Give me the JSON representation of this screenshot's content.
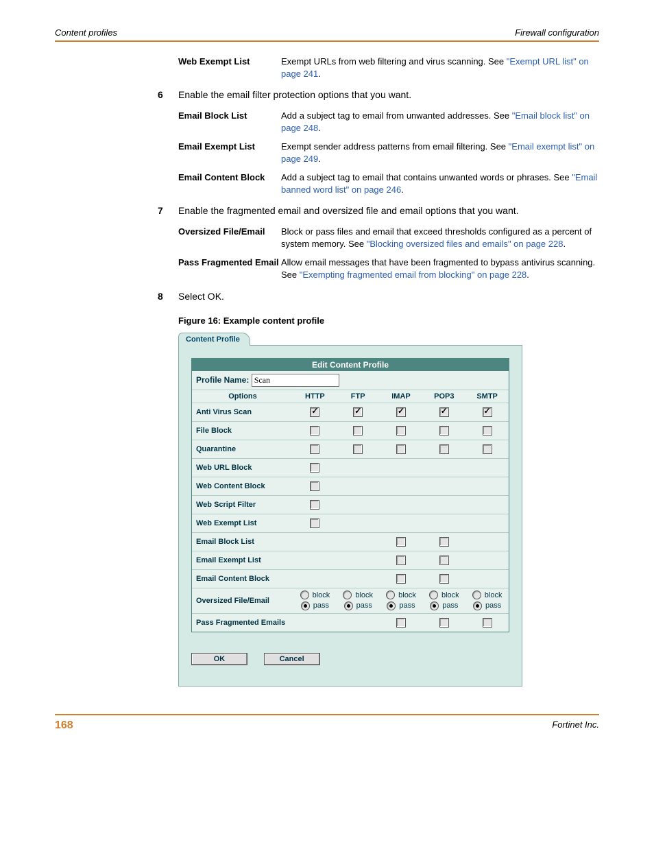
{
  "header": {
    "left": "Content profiles",
    "right": "Firewall configuration"
  },
  "footer": {
    "page": "168",
    "right": "Fortinet Inc."
  },
  "defs1": [
    {
      "term": "Web Exempt List",
      "desc_pre": "Exempt URLs from web filtering and virus scanning. See ",
      "link": "\"Exempt URL list\" on page 241",
      "desc_post": "."
    }
  ],
  "step6": {
    "num": "6",
    "text": "Enable the email filter protection options that you want."
  },
  "defs2": [
    {
      "term": "Email Block List",
      "desc_pre": "Add a subject tag to email from unwanted addresses. See ",
      "link": "\"Email block list\" on page 248",
      "desc_post": "."
    },
    {
      "term": "Email Exempt List",
      "desc_pre": "Exempt sender address patterns from email filtering. See ",
      "link": "\"Email exempt list\" on page 249",
      "desc_post": "."
    },
    {
      "term": "Email Content Block",
      "desc_pre": "Add a subject tag to email that contains unwanted words or phrases. See ",
      "link": "\"Email banned word list\" on page 246",
      "desc_post": "."
    }
  ],
  "step7": {
    "num": "7",
    "text": "Enable the fragmented email and oversized file and email options that you want."
  },
  "defs3": [
    {
      "term": "Oversized File/Email",
      "desc_pre": "Block or pass files and email that exceed thresholds configured as a percent of system memory. See ",
      "link": "\"Blocking oversized files and emails\" on page 228",
      "desc_post": "."
    },
    {
      "term": "Pass Fragmented Email",
      "desc_pre": "Allow email messages that have been fragmented to bypass antivirus scanning. See ",
      "link": "\"Exempting fragmented email from blocking\" on page 228",
      "desc_post": "."
    }
  ],
  "step8": {
    "num": "8",
    "text": "Select OK."
  },
  "figure": {
    "caption": "Figure 16: Example content profile"
  },
  "panel": {
    "tab": "Content Profile",
    "title": "Edit Content Profile",
    "name_label": "Profile Name:",
    "name_value": "Scan",
    "columns": [
      "Options",
      "HTTP",
      "FTP",
      "IMAP",
      "POP3",
      "SMTP"
    ],
    "rows": [
      {
        "label": "Anti Virus Scan",
        "cells": [
          "cbx",
          "cbx",
          "cbx",
          "cbx",
          "cbx"
        ]
      },
      {
        "label": "File Block",
        "cells": [
          "cb",
          "cb",
          "cb",
          "cb",
          "cb"
        ]
      },
      {
        "label": "Quarantine",
        "cells": [
          "cb",
          "cb",
          "cb",
          "cb",
          "cb"
        ]
      },
      {
        "label": "Web URL Block",
        "cells": [
          "cb",
          "",
          "",
          "",
          ""
        ]
      },
      {
        "label": "Web Content Block",
        "cells": [
          "cb",
          "",
          "",
          "",
          ""
        ]
      },
      {
        "label": "Web Script Filter",
        "cells": [
          "cb",
          "",
          "",
          "",
          ""
        ]
      },
      {
        "label": "Web Exempt List",
        "cells": [
          "cb",
          "",
          "",
          "",
          ""
        ]
      },
      {
        "label": "Email Block List",
        "cells": [
          "",
          "",
          "cb",
          "cb",
          ""
        ]
      },
      {
        "label": "Email Exempt List",
        "cells": [
          "",
          "",
          "cb",
          "cb",
          ""
        ]
      },
      {
        "label": "Email Content Block",
        "cells": [
          "",
          "",
          "cb",
          "cb",
          ""
        ]
      },
      {
        "label": "Oversized File/Email",
        "cells": [
          "radio",
          "radio",
          "radio",
          "radio",
          "radio"
        ],
        "tall": true
      },
      {
        "label": "Pass Fragmented Emails",
        "cells": [
          "",
          "",
          "cb",
          "cb",
          "cb"
        ]
      }
    ],
    "radio_block": "block",
    "radio_pass": "pass",
    "ok": "OK",
    "cancel": "Cancel"
  }
}
